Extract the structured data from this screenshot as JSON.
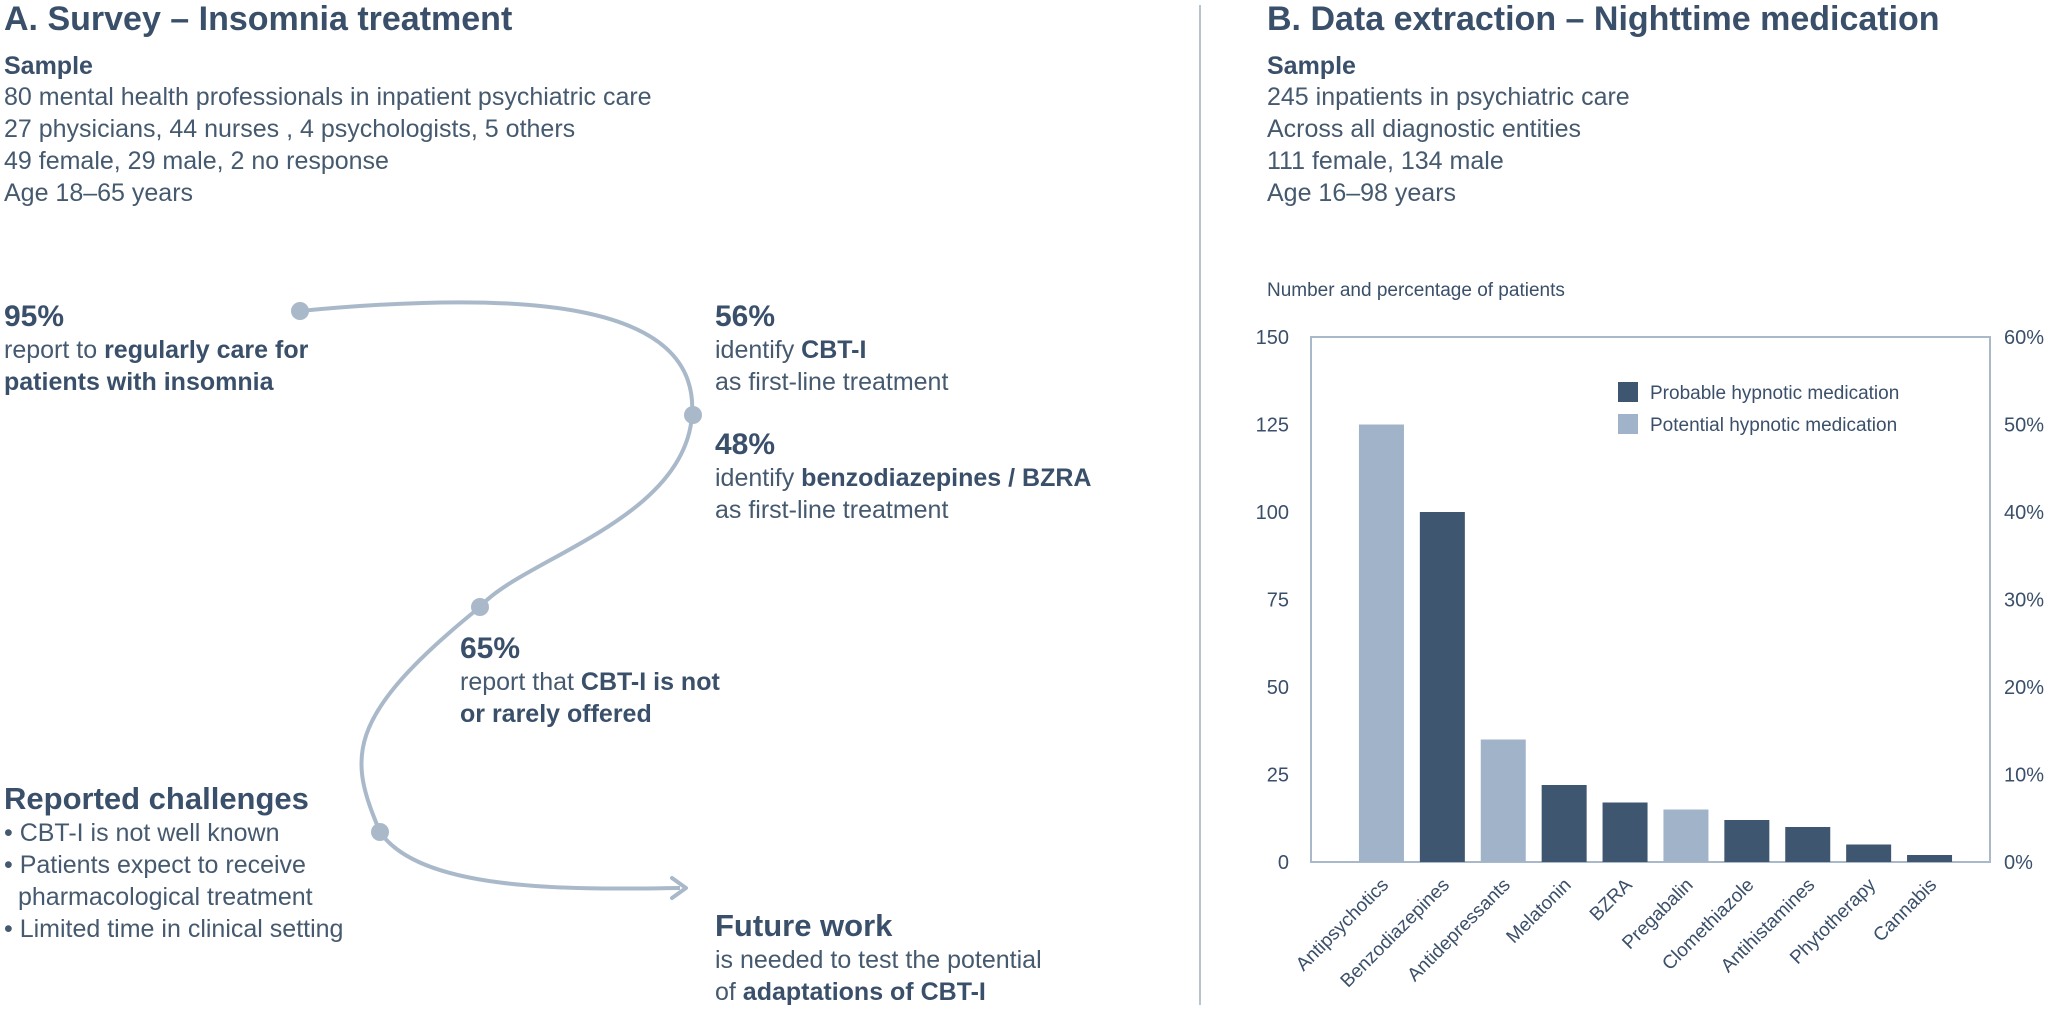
{
  "panel_a": {
    "title": "A. Survey – Insomnia treatment",
    "sample": {
      "heading": "Sample",
      "lines": [
        "80 mental health professionals in inpatient psychiatric care",
        "27 physicians, 44 nurses , 4 psychologists, 5 others",
        "49 female, 29 male, 2 no response",
        "Age 18–65 years"
      ]
    },
    "finding_1": {
      "pct": "95%",
      "pre": "report to ",
      "bold": "regularly care for",
      "line2": "patients with insomnia"
    },
    "finding_2": {
      "pct": "56%",
      "pre": "identify ",
      "bold": "CBT-I",
      "line2": "as first-line treatment"
    },
    "finding_3": {
      "pct": "48%",
      "pre": "identify ",
      "bold": "benzodiazepines / BZRA",
      "line2": "as first-line treatment"
    },
    "finding_4": {
      "pct": "65%",
      "pre": "report that ",
      "bold": "CBT-I is not",
      "line2": "or rarely offered"
    },
    "challenges": {
      "title": "Reported challenges",
      "items": [
        "• CBT-I is not well known",
        "• Patients expect to receive",
        "pharmacological treatment",
        "• Limited time in clinical setting"
      ]
    },
    "future": {
      "title": "Future work",
      "line1": "is needed to test the potential",
      "pre2": "of ",
      "bold2": "adaptations of CBT-I"
    }
  },
  "panel_b": {
    "title": "B. Data extraction – Nighttime medication",
    "sample": {
      "heading": "Sample",
      "lines": [
        "245 inpatients in psychiatric care",
        "Across all diagnostic entities",
        "111 female, 134 male",
        "Age 16–98 years"
      ]
    }
  },
  "colors": {
    "probable": "#3f5670",
    "potential": "#a0b3c8",
    "curve": "#a9b9ca",
    "axis": "#a9b9ca"
  },
  "chart_data": {
    "type": "bar",
    "title": "Number and percentage of patients",
    "categories": [
      "Antipsychotics",
      "Benzodiazepines",
      "Antidepressants",
      "Melatonin",
      "BZRA",
      "Pregabalin",
      "Clomethiazole",
      "Antihistamines",
      "Phytotherapy",
      "Cannabis"
    ],
    "values": [
      125,
      100,
      35,
      22,
      17,
      15,
      12,
      10,
      5,
      2
    ],
    "bar_series": [
      "Potential hypnotic medication",
      "Probable hypnotic medication",
      "Potential hypnotic medication",
      "Probable hypnotic medication",
      "Probable hypnotic medication",
      "Potential hypnotic medication",
      "Probable hypnotic medication",
      "Probable hypnotic medication",
      "Probable hypnotic medication",
      "Probable hypnotic medication"
    ],
    "legend": [
      "Probable hypnotic medication",
      "Potential hypnotic medication"
    ],
    "legend_position": "top-right",
    "ylim": [
      0,
      150
    ],
    "yticks": [
      "0",
      "25",
      "50",
      "75",
      "100",
      "125",
      "150"
    ],
    "y2ticks": [
      "0%",
      "10%",
      "20%",
      "30%",
      "40%",
      "50%",
      "60%"
    ],
    "grid": false
  }
}
